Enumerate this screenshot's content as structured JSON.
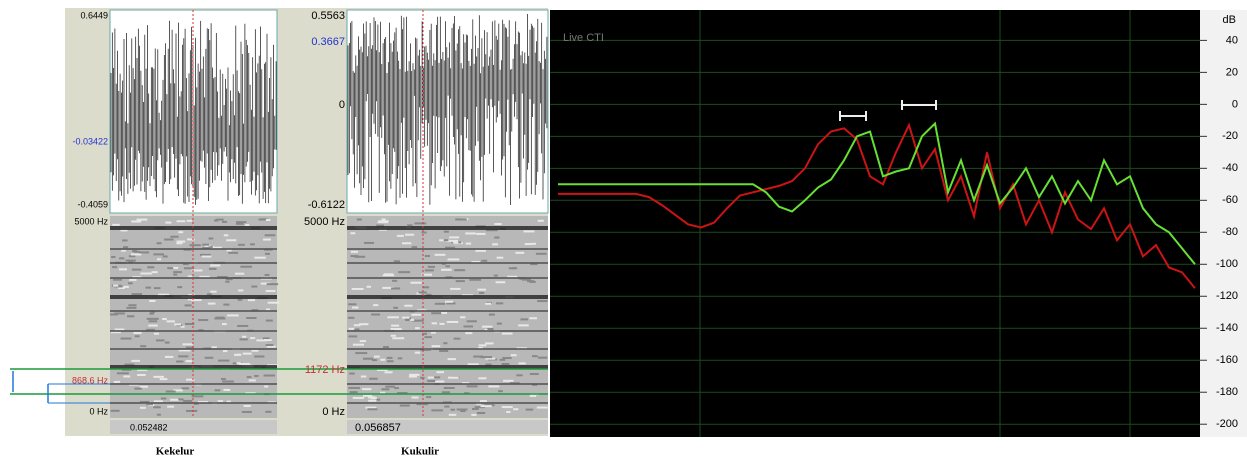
{
  "panels": [
    {
      "top_value": "0.6449",
      "mid_value": "-0.03422",
      "bottom_value": "-0.4059",
      "freq_top": "5000 Hz",
      "freq_marker": "868.6 Hz",
      "freq_bottom": "0 Hz",
      "time": "0.052482",
      "caption": "Kekelur"
    },
    {
      "top_value": "0.5563",
      "mid_value": "0.3667",
      "zero_value": "0",
      "bottom_value": "-0.6122",
      "freq_top": "5000 Hz",
      "freq_marker": "1172 Hz",
      "freq_bottom": "0 Hz",
      "time": "0.056857",
      "caption": "Kukulir"
    }
  ],
  "chart_data": {
    "type": "line",
    "title": "Live CTI",
    "y_label": "dB",
    "ylim": [
      -208,
      59
    ],
    "yticks": [
      40,
      20,
      0,
      -20,
      -40,
      -60,
      -80,
      -100,
      -120,
      -140,
      -160,
      -180,
      -200
    ],
    "grid": true,
    "series": [
      {
        "color": "#cc1414",
        "values": [
          -56,
          -56,
          -56,
          -56,
          -56,
          -56,
          -56,
          -58,
          -63,
          -69,
          -75,
          -77,
          -74,
          -65,
          -57,
          -55,
          -53,
          -51,
          -48,
          -40,
          -25,
          -17,
          -15,
          -22,
          -45,
          -50,
          -30,
          -13,
          -40,
          -28,
          -60,
          -45,
          -70,
          -30,
          -65,
          -50,
          -75,
          -60,
          -80,
          -55,
          -72,
          -78,
          -65,
          -85,
          -75,
          -95,
          -88,
          -102,
          -105,
          -115
        ]
      },
      {
        "color": "#66e033",
        "values": [
          -50,
          -50,
          -50,
          -50,
          -50,
          -50,
          -50,
          -50,
          -50,
          -50,
          -50,
          -50,
          -50,
          -50,
          -50,
          -50,
          -55,
          -64,
          -67,
          -60,
          -52,
          -47,
          -35,
          -20,
          -17,
          -45,
          -42,
          -40,
          -20,
          -12,
          -55,
          -35,
          -60,
          -38,
          -62,
          -52,
          -40,
          -58,
          -45,
          -62,
          -48,
          -60,
          -35,
          -50,
          -45,
          -65,
          -75,
          -80,
          -90,
          -100
        ]
      }
    ]
  }
}
